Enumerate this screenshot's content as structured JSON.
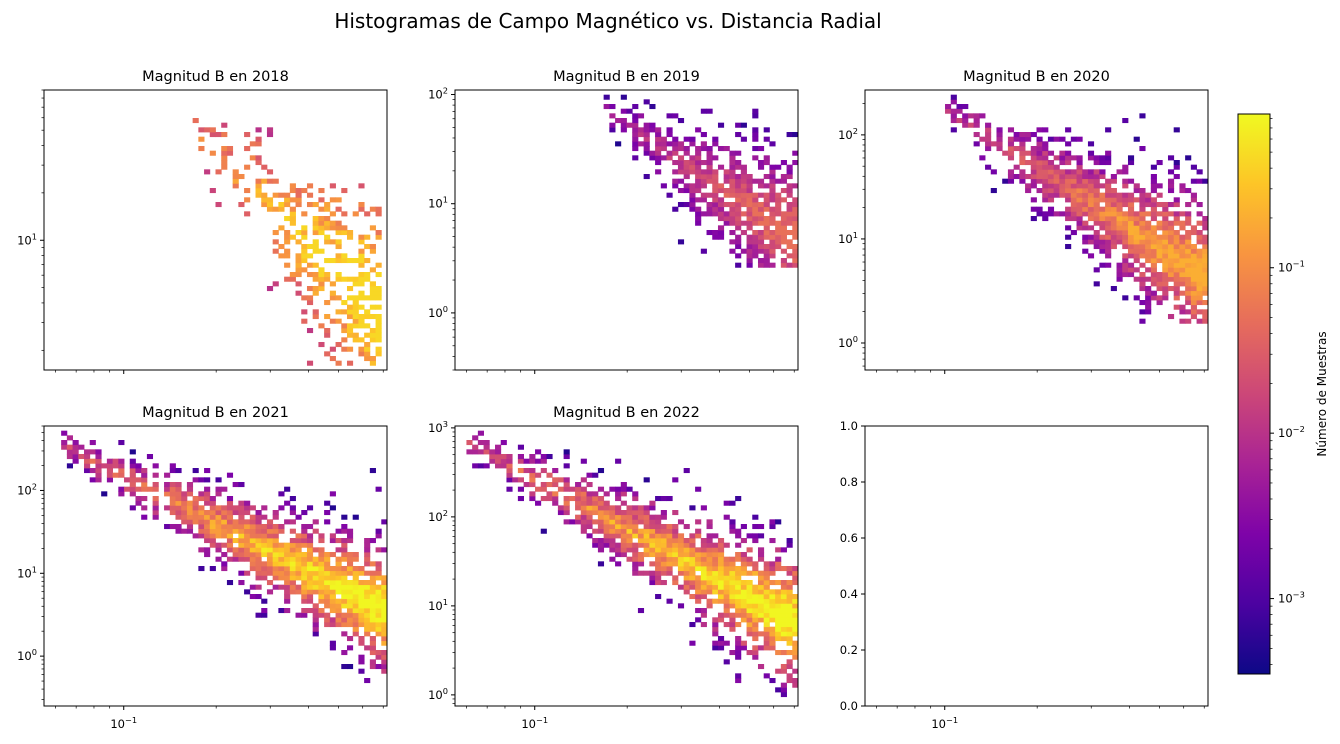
{
  "figure": {
    "title": "Histogramas de Campo Magnético vs. Distancia Radial"
  },
  "colorbar": {
    "label": "Número de Muestras",
    "scale": "log",
    "range": [
      0.00035,
      0.85
    ],
    "ticks": [
      {
        "value": 0.001,
        "base": "10",
        "exp": "−3"
      },
      {
        "value": 0.01,
        "base": "10",
        "exp": "−2"
      },
      {
        "value": 0.1,
        "base": "10",
        "exp": "−1"
      }
    ],
    "colormap": "plasma"
  },
  "shared_x_tick": {
    "value": 0.1,
    "base": "10",
    "exp": "−1"
  },
  "chart_data": [
    {
      "type": "heatmap",
      "title": "Magnitud B en 2018",
      "xlabel": "",
      "ylabel": "",
      "xscale": "log",
      "yscale": "log",
      "xlim": [
        0.055,
        0.72
      ],
      "ylim": [
        1.5,
        90
      ],
      "yticks": [
        {
          "value": 10,
          "base": "10",
          "exp": "1"
        }
      ],
      "density": "sparse",
      "clusters": [
        {
          "x": [
            0.17,
            0.3
          ],
          "y": [
            14,
            70
          ],
          "value": [
            0.004,
            0.08
          ]
        },
        {
          "x": [
            0.3,
            0.7
          ],
          "y": [
            5,
            25
          ],
          "value": [
            0.02,
            0.4
          ]
        },
        {
          "x": [
            0.27,
            0.7
          ],
          "y": [
            1.6,
            6
          ],
          "value": [
            0.05,
            0.4
          ]
        }
      ]
    },
    {
      "type": "heatmap",
      "title": "Magnitud B en 2019",
      "xlabel": "",
      "ylabel": "",
      "xscale": "log",
      "yscale": "log",
      "xlim": [
        0.055,
        0.72
      ],
      "ylim": [
        0.3,
        110
      ],
      "yticks": [
        {
          "value": 1,
          "base": "10",
          "exp": "0"
        },
        {
          "value": 10,
          "base": "10",
          "exp": "1"
        },
        {
          "value": 100,
          "base": "10",
          "exp": "2"
        }
      ],
      "density": "medium",
      "clusters": [
        {
          "x": [
            0.17,
            0.72
          ],
          "y": [
            2.5,
            100
          ],
          "value": [
            0.001,
            0.05
          ]
        }
      ]
    },
    {
      "type": "heatmap",
      "title": "Magnitud B en 2020",
      "xlabel": "",
      "ylabel": "",
      "xscale": "log",
      "yscale": "log",
      "xlim": [
        0.055,
        0.72
      ],
      "ylim": [
        0.55,
        270
      ],
      "yticks": [
        {
          "value": 1,
          "base": "10",
          "exp": "0"
        },
        {
          "value": 10,
          "base": "10",
          "exp": "1"
        },
        {
          "value": 100,
          "base": "10",
          "exp": "2"
        }
      ],
      "density": "dense",
      "clusters": [
        {
          "x": [
            0.1,
            0.72
          ],
          "y": [
            1.5,
            250
          ],
          "value": [
            0.001,
            0.2
          ]
        }
      ]
    },
    {
      "type": "heatmap",
      "title": "Magnitud B en 2021",
      "xlabel": "",
      "ylabel": "",
      "xscale": "log",
      "yscale": "log",
      "xlim": [
        0.055,
        0.72
      ],
      "ylim": [
        0.25,
        600
      ],
      "yticks": [
        {
          "value": 1,
          "base": "10",
          "exp": "0"
        },
        {
          "value": 10,
          "base": "10",
          "exp": "1"
        },
        {
          "value": 100,
          "base": "10",
          "exp": "2"
        }
      ],
      "density": "dense",
      "clusters": [
        {
          "x": [
            0.06,
            0.72
          ],
          "y": [
            0.5,
            550
          ],
          "value": [
            0.002,
            0.8
          ]
        }
      ]
    },
    {
      "type": "heatmap",
      "title": "Magnitud B en 2022",
      "xlabel": "",
      "ylabel": "",
      "xscale": "log",
      "yscale": "log",
      "xlim": [
        0.055,
        0.72
      ],
      "ylim": [
        0.75,
        1050
      ],
      "yticks": [
        {
          "value": 1,
          "base": "10",
          "exp": "0"
        },
        {
          "value": 10,
          "base": "10",
          "exp": "1"
        },
        {
          "value": 100,
          "base": "10",
          "exp": "2"
        },
        {
          "value": 1000,
          "base": "10",
          "exp": "3"
        }
      ],
      "density": "dense",
      "clusters": [
        {
          "x": [
            0.06,
            0.72
          ],
          "y": [
            1,
            1000
          ],
          "value": [
            0.002,
            0.8
          ]
        }
      ]
    },
    {
      "type": "empty",
      "title": "",
      "xlabel": "",
      "ylabel": "",
      "xscale": "log",
      "yscale": "linear",
      "xlim": [
        0.055,
        0.72
      ],
      "ylim": [
        0,
        1
      ],
      "yticks": [
        {
          "label": "0.0"
        },
        {
          "label": "0.2"
        },
        {
          "label": "0.4"
        },
        {
          "label": "0.6"
        },
        {
          "label": "0.8"
        },
        {
          "label": "1.0"
        }
      ]
    }
  ]
}
